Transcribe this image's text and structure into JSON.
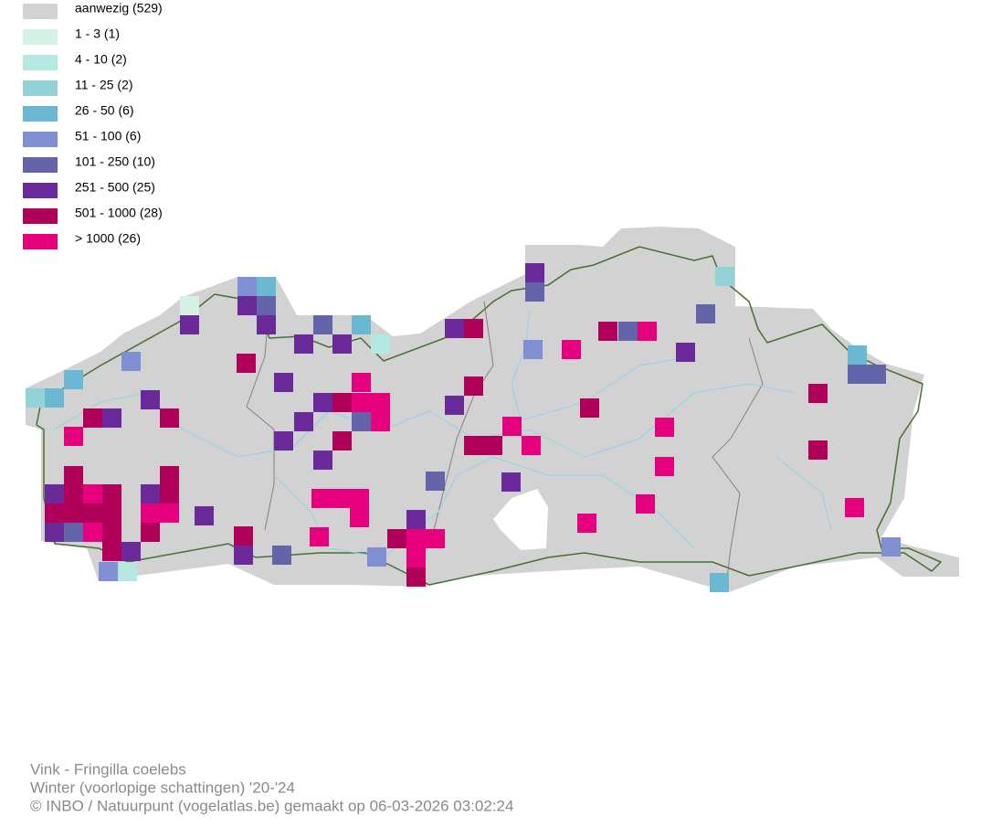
{
  "legend": {
    "items": [
      {
        "label": "aanwezig (529)",
        "color": "#d2d2d2"
      },
      {
        "label": "1 - 3 (1)",
        "color": "#d6f2e6"
      },
      {
        "label": "4 - 10 (2)",
        "color": "#b4e8e0"
      },
      {
        "label": "11 - 25 (2)",
        "color": "#93d2d6"
      },
      {
        "label": "26 - 50 (6)",
        "color": "#6ab8d2"
      },
      {
        "label": "51 - 100 (6)",
        "color": "#7f8fd2"
      },
      {
        "label": "101 - 250 (10)",
        "color": "#6464aa"
      },
      {
        "label": "251 - 500 (25)",
        "color": "#6a2a9a"
      },
      {
        "label": "501 - 1000 (28)",
        "color": "#b0005a"
      },
      {
        "label": "> 1000 (26)",
        "color": "#e6007e"
      }
    ]
  },
  "footer": {
    "lines": [
      "Vink - Fringilla coelebs",
      "Winter (voorlopige schattingen) '20-'24",
      "© INBO / Natuurpunt (vogelatlas.be) gemaakt op 06-03-2026 03:02:24"
    ]
  }
}
